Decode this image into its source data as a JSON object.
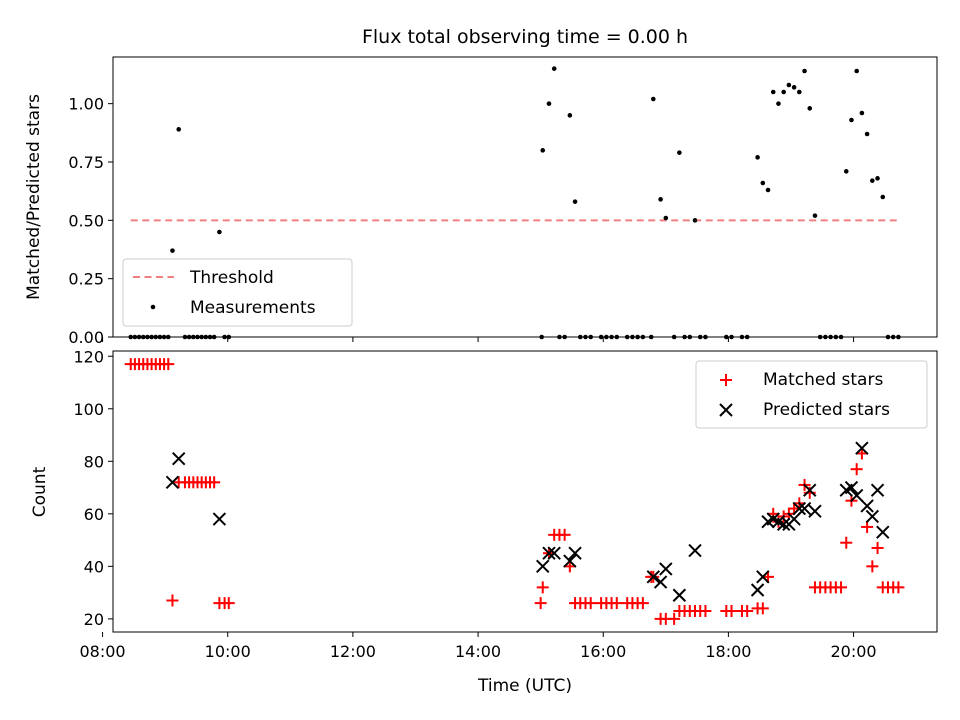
{
  "chart_data": [
    {
      "type": "scatter",
      "title": "Flux total observing time = 0.00 h",
      "xlabel": "",
      "ylabel": "Matched/Predicted stars",
      "xlim": [
        "08:10",
        "21:20"
      ],
      "ylim": [
        0,
        1.2
      ],
      "yticks": [
        "0.00",
        "0.25",
        "0.50",
        "0.75",
        "1.00"
      ],
      "legend_position": "lower-left",
      "grid": false,
      "threshold": {
        "name": "Threshold",
        "value": 0.5,
        "x_start": "08:27",
        "x_end": "20:45",
        "color": "#f08080",
        "style": "dashed"
      },
      "series": [
        {
          "name": "Measurements",
          "color": "#000000",
          "points": [
            [
              "08:27",
              0
            ],
            [
              "08:31",
              0
            ],
            [
              "08:35",
              0
            ],
            [
              "08:39",
              0
            ],
            [
              "08:43",
              0
            ],
            [
              "08:47",
              0
            ],
            [
              "08:51",
              0
            ],
            [
              "08:55",
              0
            ],
            [
              "08:59",
              0
            ],
            [
              "09:03",
              0
            ],
            [
              "09:07",
              0.37
            ],
            [
              "09:13",
              0.89
            ],
            [
              "09:19",
              0
            ],
            [
              "09:23",
              0
            ],
            [
              "09:27",
              0
            ],
            [
              "09:31",
              0
            ],
            [
              "09:35",
              0
            ],
            [
              "09:39",
              0
            ],
            [
              "09:43",
              0
            ],
            [
              "09:47",
              0
            ],
            [
              "09:52",
              0.45
            ],
            [
              "09:57",
              0
            ],
            [
              "10:01",
              0
            ],
            [
              "15:01",
              0
            ],
            [
              "15:02",
              0.8
            ],
            [
              "15:08",
              1.0
            ],
            [
              "15:13",
              1.15
            ],
            [
              "15:18",
              0
            ],
            [
              "15:23",
              0
            ],
            [
              "15:28",
              0.95
            ],
            [
              "15:33",
              0.58
            ],
            [
              "15:38",
              0
            ],
            [
              "15:43",
              0
            ],
            [
              "15:48",
              0
            ],
            [
              "15:58",
              0
            ],
            [
              "16:03",
              0
            ],
            [
              "16:08",
              0
            ],
            [
              "16:13",
              0
            ],
            [
              "16:23",
              0
            ],
            [
              "16:28",
              0
            ],
            [
              "16:33",
              0
            ],
            [
              "16:38",
              0
            ],
            [
              "16:46",
              0
            ],
            [
              "16:48",
              1.02
            ],
            [
              "16:55",
              0.59
            ],
            [
              "17:00",
              0.51
            ],
            [
              "17:08",
              0
            ],
            [
              "17:13",
              0.79
            ],
            [
              "17:18",
              0
            ],
            [
              "17:23",
              0
            ],
            [
              "17:28",
              0.5
            ],
            [
              "17:33",
              0
            ],
            [
              "17:38",
              0
            ],
            [
              "17:58",
              0
            ],
            [
              "18:03",
              0
            ],
            [
              "18:13",
              0
            ],
            [
              "18:18",
              0
            ],
            [
              "18:28",
              0.77
            ],
            [
              "18:33",
              0.66
            ],
            [
              "18:38",
              0.63
            ],
            [
              "18:43",
              1.05
            ],
            [
              "18:48",
              1.0
            ],
            [
              "18:53",
              1.05
            ],
            [
              "18:58",
              1.08
            ],
            [
              "19:03",
              1.07
            ],
            [
              "19:08",
              1.05
            ],
            [
              "19:13",
              1.14
            ],
            [
              "19:18",
              0.98
            ],
            [
              "19:23",
              0.52
            ],
            [
              "19:28",
              0
            ],
            [
              "19:33",
              0
            ],
            [
              "19:38",
              0
            ],
            [
              "19:43",
              0
            ],
            [
              "19:48",
              0
            ],
            [
              "19:53",
              0.71
            ],
            [
              "19:58",
              0.93
            ],
            [
              "20:03",
              1.14
            ],
            [
              "20:08",
              0.96
            ],
            [
              "20:13",
              0.87
            ],
            [
              "20:18",
              0.67
            ],
            [
              "20:23",
              0.68
            ],
            [
              "20:28",
              0.6
            ],
            [
              "20:33",
              0
            ],
            [
              "20:38",
              0
            ],
            [
              "20:43",
              0
            ]
          ]
        }
      ]
    },
    {
      "type": "scatter",
      "title": "",
      "xlabel": "Time (UTC)",
      "ylabel": "Count",
      "xlim": [
        "08:10",
        "21:20"
      ],
      "ylim": [
        15,
        122
      ],
      "xticks": [
        "08:00",
        "10:00",
        "12:00",
        "14:00",
        "16:00",
        "18:00",
        "20:00"
      ],
      "yticks": [
        "20",
        "40",
        "60",
        "80",
        "100",
        "120"
      ],
      "legend_position": "top-right",
      "grid": false,
      "series": [
        {
          "name": "Matched stars",
          "color": "#ff0000",
          "marker": "+",
          "points": [
            [
              "08:27",
              117
            ],
            [
              "08:31",
              117
            ],
            [
              "08:35",
              117
            ],
            [
              "08:39",
              117
            ],
            [
              "08:43",
              117
            ],
            [
              "08:47",
              117
            ],
            [
              "08:51",
              117
            ],
            [
              "08:55",
              117
            ],
            [
              "08:59",
              117
            ],
            [
              "09:03",
              117
            ],
            [
              "09:07",
              27
            ],
            [
              "09:13",
              72
            ],
            [
              "09:19",
              72
            ],
            [
              "09:23",
              72
            ],
            [
              "09:27",
              72
            ],
            [
              "09:31",
              72
            ],
            [
              "09:35",
              72
            ],
            [
              "09:39",
              72
            ],
            [
              "09:43",
              72
            ],
            [
              "09:47",
              72
            ],
            [
              "09:52",
              26
            ],
            [
              "09:57",
              26
            ],
            [
              "10:01",
              26
            ],
            [
              "15:00",
              26
            ],
            [
              "15:02",
              32
            ],
            [
              "15:08",
              45
            ],
            [
              "15:13",
              52
            ],
            [
              "15:18",
              52
            ],
            [
              "15:23",
              52
            ],
            [
              "15:28",
              40
            ],
            [
              "15:33",
              26
            ],
            [
              "15:38",
              26
            ],
            [
              "15:43",
              26
            ],
            [
              "15:48",
              26
            ],
            [
              "15:58",
              26
            ],
            [
              "16:03",
              26
            ],
            [
              "16:08",
              26
            ],
            [
              "16:13",
              26
            ],
            [
              "16:23",
              26
            ],
            [
              "16:28",
              26
            ],
            [
              "16:33",
              26
            ],
            [
              "16:38",
              26
            ],
            [
              "16:46",
              36
            ],
            [
              "16:48",
              36
            ],
            [
              "16:55",
              20
            ],
            [
              "17:00",
              20
            ],
            [
              "17:08",
              20
            ],
            [
              "17:13",
              23
            ],
            [
              "17:18",
              23
            ],
            [
              "17:23",
              23
            ],
            [
              "17:28",
              23
            ],
            [
              "17:33",
              23
            ],
            [
              "17:38",
              23
            ],
            [
              "17:58",
              23
            ],
            [
              "18:03",
              23
            ],
            [
              "18:13",
              23
            ],
            [
              "18:18",
              23
            ],
            [
              "18:28",
              24
            ],
            [
              "18:33",
              24
            ],
            [
              "18:38",
              36
            ],
            [
              "18:43",
              60
            ],
            [
              "18:48",
              57
            ],
            [
              "18:53",
              59
            ],
            [
              "18:58",
              60
            ],
            [
              "19:03",
              62
            ],
            [
              "19:08",
              64
            ],
            [
              "19:13",
              71
            ],
            [
              "19:18",
              68
            ],
            [
              "19:23",
              32
            ],
            [
              "19:28",
              32
            ],
            [
              "19:33",
              32
            ],
            [
              "19:38",
              32
            ],
            [
              "19:43",
              32
            ],
            [
              "19:48",
              32
            ],
            [
              "19:53",
              49
            ],
            [
              "19:58",
              65
            ],
            [
              "20:03",
              77
            ],
            [
              "20:08",
              83
            ],
            [
              "20:13",
              55
            ],
            [
              "20:18",
              40
            ],
            [
              "20:23",
              47
            ],
            [
              "20:28",
              32
            ],
            [
              "20:33",
              32
            ],
            [
              "20:38",
              32
            ],
            [
              "20:43",
              32
            ]
          ]
        },
        {
          "name": "Predicted stars",
          "color": "#000000",
          "marker": "x",
          "points": [
            [
              "09:07",
              72
            ],
            [
              "09:13",
              81
            ],
            [
              "09:52",
              58
            ],
            [
              "15:02",
              40
            ],
            [
              "15:08",
              45
            ],
            [
              "15:13",
              45
            ],
            [
              "15:28",
              42
            ],
            [
              "15:33",
              45
            ],
            [
              "16:48",
              36
            ],
            [
              "16:55",
              34
            ],
            [
              "17:00",
              39
            ],
            [
              "17:13",
              29
            ],
            [
              "17:28",
              46
            ],
            [
              "18:28",
              31
            ],
            [
              "18:33",
              36
            ],
            [
              "18:38",
              57
            ],
            [
              "18:43",
              58
            ],
            [
              "18:48",
              57
            ],
            [
              "18:53",
              56
            ],
            [
              "18:58",
              56
            ],
            [
              "19:03",
              58
            ],
            [
              "19:08",
              62
            ],
            [
              "19:13",
              62
            ],
            [
              "19:18",
              69
            ],
            [
              "19:23",
              61
            ],
            [
              "19:53",
              69
            ],
            [
              "19:58",
              70
            ],
            [
              "20:03",
              67
            ],
            [
              "20:08",
              85
            ],
            [
              "20:13",
              63
            ],
            [
              "20:18",
              59
            ],
            [
              "20:23",
              69
            ],
            [
              "20:28",
              53
            ]
          ]
        }
      ]
    }
  ]
}
